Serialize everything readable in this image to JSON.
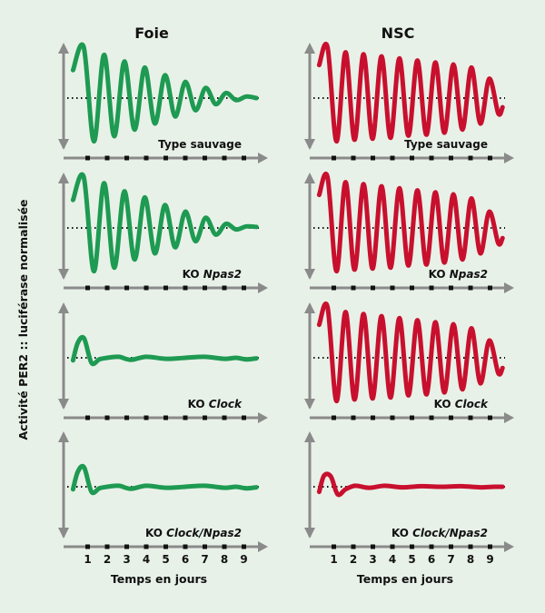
{
  "chart_data": {
    "type": "line",
    "ylabel": "Activité PER2 :: luciférase normalisée",
    "xlabel": "Temps en jours",
    "x_ticks": [
      "1",
      "2",
      "3",
      "4",
      "5",
      "6",
      "7",
      "8",
      "9"
    ],
    "columns": [
      {
        "title": "Foie",
        "color": "#1e9a52"
      },
      {
        "title": "NSC",
        "color": "#c8102e"
      }
    ],
    "rows": [
      {
        "genotype_prefix": "",
        "genotype_italic": "",
        "genotype_suffix": "Type sauvage"
      },
      {
        "genotype_prefix": "KO ",
        "genotype_italic": "Npas2",
        "genotype_suffix": ""
      },
      {
        "genotype_prefix": "KO ",
        "genotype_italic": "Clock",
        "genotype_suffix": ""
      },
      {
        "genotype_prefix": "KO ",
        "genotype_italic": "Clock/Npas2",
        "genotype_suffix": ""
      }
    ],
    "series": [
      {
        "name": "Foie Type sauvage",
        "x": [
          0.25,
          0.8,
          1.32,
          1.84,
          2.36,
          2.88,
          3.4,
          3.92,
          4.44,
          4.96,
          5.48,
          6.0,
          6.52,
          7.04,
          7.56,
          8.08,
          8.6,
          9.12,
          9.64
        ],
        "y": [
          0.55,
          1.0,
          -0.85,
          0.85,
          -0.75,
          0.72,
          -0.62,
          0.6,
          -0.5,
          0.45,
          -0.36,
          0.32,
          -0.24,
          0.2,
          -0.12,
          0.1,
          -0.04,
          0.03,
          0.0
        ]
      },
      {
        "name": "NSC Type sauvage",
        "x": [
          0.25,
          0.68,
          1.14,
          1.6,
          2.06,
          2.52,
          2.98,
          3.44,
          3.9,
          4.36,
          4.82,
          5.28,
          5.74,
          6.2,
          6.66,
          7.12,
          7.58,
          8.04,
          8.5,
          8.96,
          9.42,
          9.64
        ],
        "y": [
          0.65,
          1.0,
          -0.85,
          0.9,
          -0.82,
          0.86,
          -0.8,
          0.82,
          -0.78,
          0.78,
          -0.74,
          0.74,
          -0.72,
          0.7,
          -0.68,
          0.66,
          -0.62,
          0.6,
          -0.5,
          0.38,
          -0.3,
          -0.18
        ]
      },
      {
        "name": "Foie KO Npas2",
        "x": [
          0.25,
          0.8,
          1.32,
          1.84,
          2.36,
          2.88,
          3.4,
          3.92,
          4.44,
          4.96,
          5.48,
          6.0,
          6.52,
          7.04,
          7.56,
          8.08,
          8.6,
          9.12,
          9.64
        ],
        "y": [
          0.55,
          1.0,
          -0.85,
          0.88,
          -0.78,
          0.72,
          -0.62,
          0.6,
          -0.5,
          0.45,
          -0.38,
          0.32,
          -0.26,
          0.2,
          -0.13,
          0.08,
          -0.03,
          0.03,
          0.02
        ]
      },
      {
        "name": "NSC KO Npas2",
        "x": [
          0.25,
          0.68,
          1.14,
          1.6,
          2.06,
          2.52,
          2.98,
          3.44,
          3.9,
          4.36,
          4.82,
          5.28,
          5.74,
          6.2,
          6.66,
          7.12,
          7.58,
          8.04,
          8.5,
          8.96,
          9.42,
          9.64
        ],
        "y": [
          0.65,
          1.0,
          -0.85,
          0.9,
          -0.82,
          0.86,
          -0.8,
          0.82,
          -0.78,
          0.78,
          -0.74,
          0.74,
          -0.72,
          0.7,
          -0.68,
          0.66,
          -0.62,
          0.58,
          -0.5,
          0.32,
          -0.3,
          -0.2
        ]
      },
      {
        "name": "Foie KO Clock",
        "x": [
          0.25,
          0.5,
          0.82,
          1.2,
          1.6,
          2.0,
          2.6,
          3.2,
          4.0,
          5.0,
          6.0,
          7.0,
          8.0,
          8.6,
          9.1,
          9.64
        ],
        "y": [
          -0.05,
          0.3,
          0.38,
          -0.1,
          -0.03,
          0.0,
          0.02,
          -0.04,
          0.02,
          -0.02,
          0.0,
          0.02,
          -0.02,
          0.0,
          -0.03,
          -0.01
        ]
      },
      {
        "name": "NSC KO Clock",
        "x": [
          0.25,
          0.68,
          1.14,
          1.6,
          2.06,
          2.52,
          2.98,
          3.44,
          3.9,
          4.36,
          4.82,
          5.28,
          5.74,
          6.2,
          6.66,
          7.12,
          7.58,
          8.04,
          8.5,
          8.96,
          9.42,
          9.64
        ],
        "y": [
          0.65,
          1.0,
          -0.85,
          0.9,
          -0.82,
          0.86,
          -0.8,
          0.82,
          -0.78,
          0.78,
          -0.74,
          0.74,
          -0.72,
          0.7,
          -0.68,
          0.66,
          -0.62,
          0.58,
          -0.5,
          0.34,
          -0.3,
          -0.2
        ]
      },
      {
        "name": "Foie KO Clock/Npas2",
        "x": [
          0.25,
          0.5,
          0.82,
          1.2,
          1.6,
          2.0,
          2.6,
          3.2,
          4.0,
          5.0,
          6.0,
          7.0,
          8.0,
          8.6,
          9.1,
          9.64
        ],
        "y": [
          -0.05,
          0.3,
          0.38,
          -0.1,
          -0.03,
          0.0,
          0.02,
          -0.04,
          0.02,
          -0.02,
          0.0,
          0.02,
          -0.02,
          0.0,
          -0.03,
          -0.01
        ]
      },
      {
        "name": "NSC KO Clock/Npas2",
        "x": [
          0.25,
          0.5,
          0.85,
          1.2,
          1.6,
          2.1,
          2.8,
          3.6,
          4.5,
          5.5,
          6.5,
          7.5,
          8.5,
          9.2,
          9.64
        ],
        "y": [
          -0.1,
          0.22,
          0.2,
          -0.15,
          -0.05,
          0.02,
          -0.02,
          0.02,
          -0.01,
          0.01,
          0.0,
          0.01,
          -0.01,
          0.0,
          0.0
        ]
      }
    ],
    "x_range": [
      0,
      10
    ],
    "y_range": [
      -1,
      1
    ],
    "baseline": "dotted at y = 0"
  }
}
